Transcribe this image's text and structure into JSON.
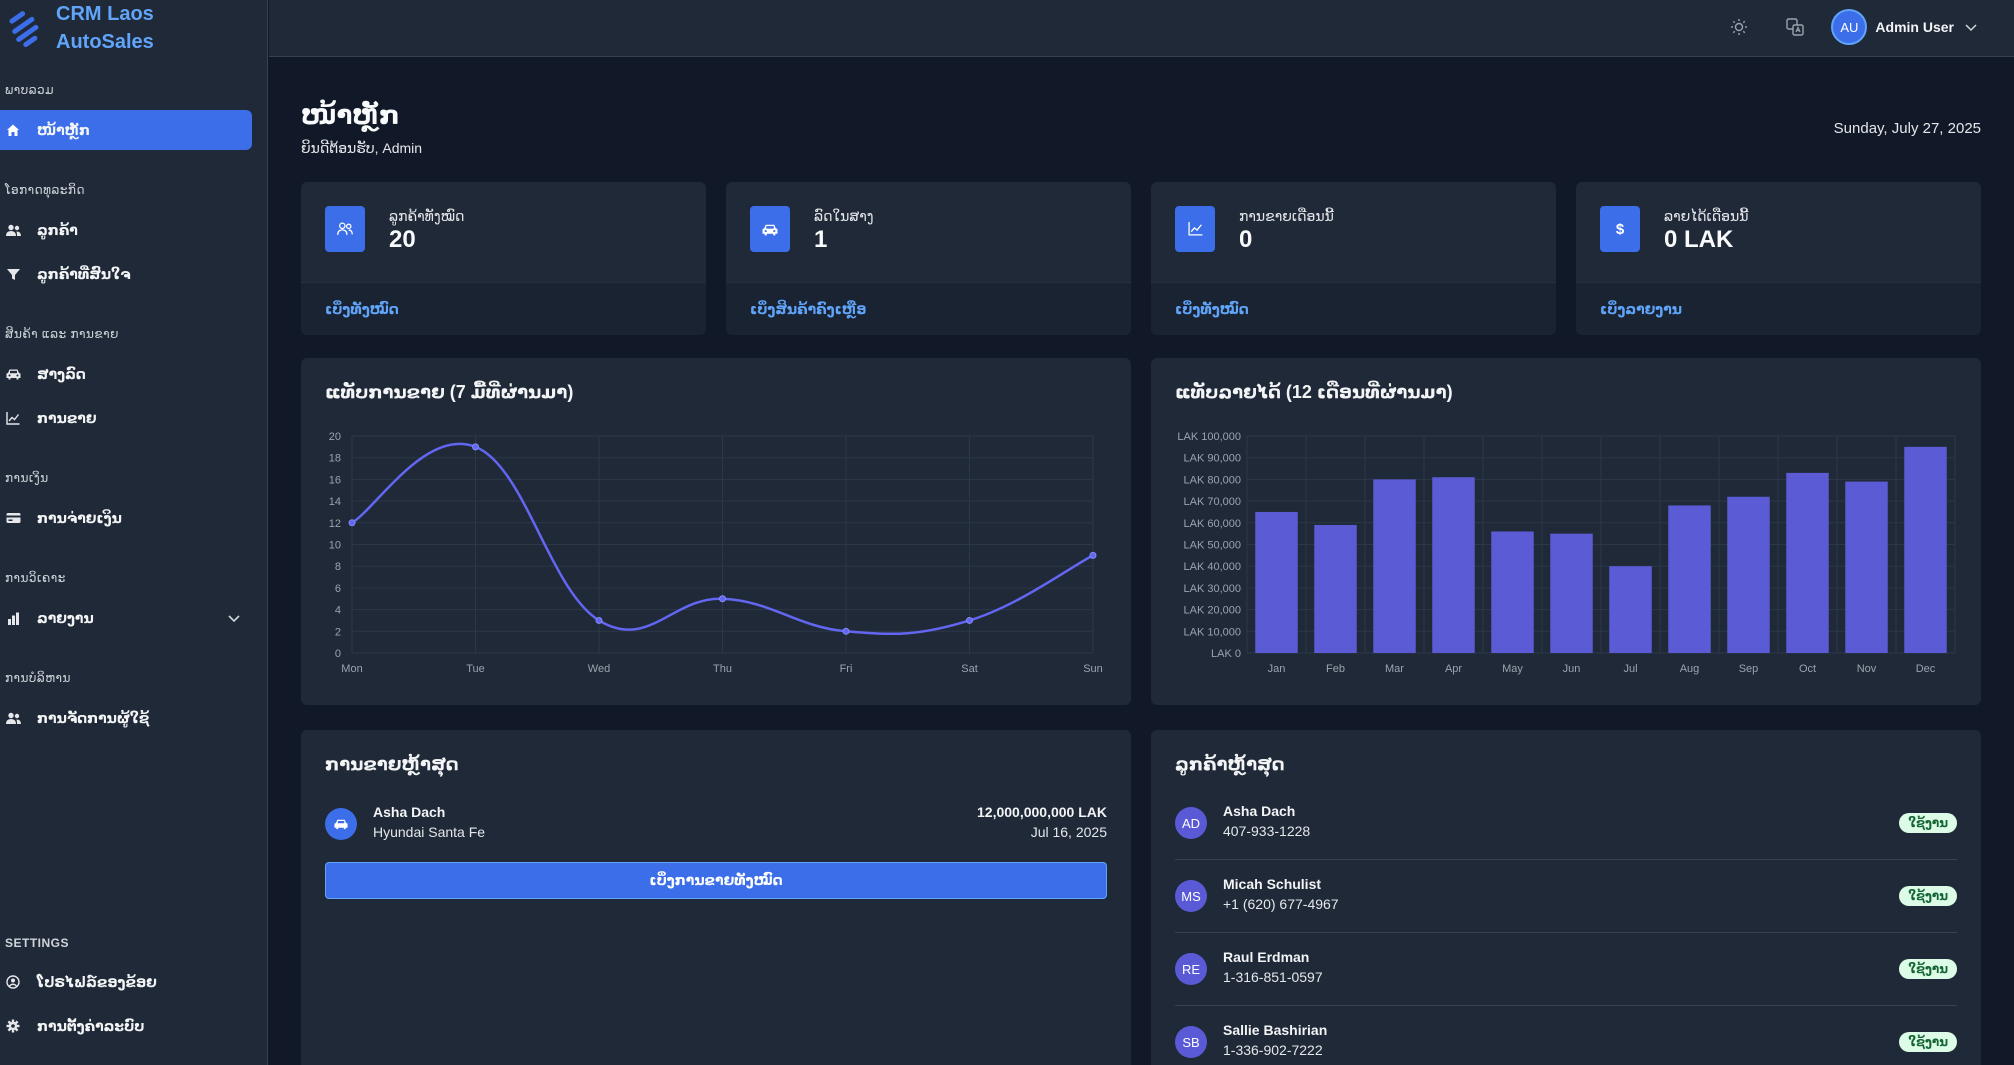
{
  "brand": {
    "line1": "CRM Laos",
    "line2": "AutoSales"
  },
  "sidebar": {
    "sections": [
      {
        "title": "ພາບລວມ"
      },
      {
        "title": "ໂອກາດທຸລະກິດ"
      },
      {
        "title": "ສິນຄ້າ ແລະ ການຂາຍ"
      },
      {
        "title": "ການເງິນ"
      },
      {
        "title": "ການວິເຄາະ"
      },
      {
        "title": "ການບໍລິຫານ"
      },
      {
        "title": "SETTINGS"
      }
    ],
    "items": [
      {
        "label": "ໜ້າຫຼັກ",
        "icon": "home-icon"
      },
      {
        "label": "ລູກຄ້າ",
        "icon": "users-icon"
      },
      {
        "label": "ລູກຄ້າທີ່ສົນໃຈ",
        "icon": "filter-icon"
      },
      {
        "label": "ສາງລົດ",
        "icon": "car-icon"
      },
      {
        "label": "ການຂາຍ",
        "icon": "trend-icon"
      },
      {
        "label": "ການຈ່າຍເງິນ",
        "icon": "card-icon"
      },
      {
        "label": "ລາຍງານ",
        "icon": "bar-chart-icon"
      },
      {
        "label": "ການຈັດການຜູ້ໃຊ້",
        "icon": "users-icon"
      },
      {
        "label": "ໂປຣໄຟລ໌ຂອງຂ້ອຍ",
        "icon": "user-circle-icon"
      },
      {
        "label": "ການຕັ້ງຄ່າລະບົບ",
        "icon": "gear-icon"
      }
    ]
  },
  "header": {
    "user_initials": "AU",
    "user_name": "Admin User"
  },
  "page": {
    "title": "ໜ້າຫຼັກ",
    "subtitle": "ຍິນດີຕ້ອນຮັບ, Admin",
    "date": "Sunday, July 27, 2025"
  },
  "stats": [
    {
      "label": "ລູກຄ້າທັງໝົດ",
      "value": "20",
      "link": "ເບິ່ງທັງໝົດ",
      "icon": "users-icon"
    },
    {
      "label": "ລົດໃນສາງ",
      "value": "1",
      "link": "ເບິ່ງສິນຄ້າຄົງເຫຼືອ",
      "icon": "car-icon"
    },
    {
      "label": "ການຂາຍເດືອນນີ້",
      "value": "0",
      "link": "ເບິ່ງທັງໝົດ",
      "icon": "trend-icon"
    },
    {
      "label": "ລາຍໄດ້ເດືອນນີ້",
      "value": "0 LAK",
      "link": "ເບິ່ງລາຍງານ",
      "icon": "dollar-icon"
    }
  ],
  "panels": {
    "sales_chart_title": "ແທັບການຂາຍ (7 ມື້ທີ່ຜ່ານມາ)",
    "revenue_chart_title": "ແທັບລາຍໄດ້ (12 ເດືອນທີ່ຜ່ານມາ)",
    "recent_sales_title": "ການຂາຍຫຼ້າສຸດ",
    "recent_customers_title": "ລູກຄ້າຫຼ້າສຸດ"
  },
  "recent_sales": {
    "items": [
      {
        "name": "Asha Dach",
        "car": "Hyundai Santa Fe",
        "amount": "12,000,000,000 LAK",
        "date": "Jul 16, 2025"
      }
    ],
    "view_all": "ເບິ່ງການຂາຍທັງໝົດ"
  },
  "recent_customers": [
    {
      "initials": "AD",
      "name": "Asha Dach",
      "phone": "407-933-1228",
      "status": "ໃຊ້ງານ"
    },
    {
      "initials": "MS",
      "name": "Micah Schulist",
      "phone": "+1 (620) 677-4967",
      "status": "ໃຊ້ງານ"
    },
    {
      "initials": "RE",
      "name": "Raul Erdman",
      "phone": "1-316-851-0597",
      "status": "ໃຊ້ງານ"
    },
    {
      "initials": "SB",
      "name": "Sallie Bashirian",
      "phone": "1-336-902-7222",
      "status": "ໃຊ້ງານ"
    }
  ],
  "colors": {
    "accent": "#3b6ee8",
    "line": "#6366f1",
    "bar": "#5b5bd6",
    "link": "#60a5fa"
  },
  "chart_data": [
    {
      "type": "line",
      "categories": [
        "Mon",
        "Tue",
        "Wed",
        "Thu",
        "Fri",
        "Sat",
        "Sun"
      ],
      "values": [
        12,
        19,
        3,
        5,
        2,
        3,
        9
      ],
      "ylim": [
        0,
        20
      ],
      "yticks": [
        "0",
        "2",
        "4",
        "6",
        "8",
        "10",
        "12",
        "14",
        "16",
        "18",
        "20"
      ],
      "grid": true
    },
    {
      "type": "bar",
      "categories": [
        "Jan",
        "Feb",
        "Mar",
        "Apr",
        "May",
        "Jun",
        "Jul",
        "Aug",
        "Sep",
        "Oct",
        "Nov",
        "Dec"
      ],
      "values": [
        65000,
        59000,
        80000,
        81000,
        56000,
        55000,
        40000,
        68000,
        72000,
        83000,
        79000,
        95000
      ],
      "ylim": [
        0,
        100000
      ],
      "yticks": [
        "LAK 0",
        "LAK 10,000",
        "LAK 20,000",
        "LAK 30,000",
        "LAK 40,000",
        "LAK 50,000",
        "LAK 60,000",
        "LAK 70,000",
        "LAK 80,000",
        "LAK 90,000",
        "LAK 100,000"
      ],
      "grid": true
    }
  ]
}
